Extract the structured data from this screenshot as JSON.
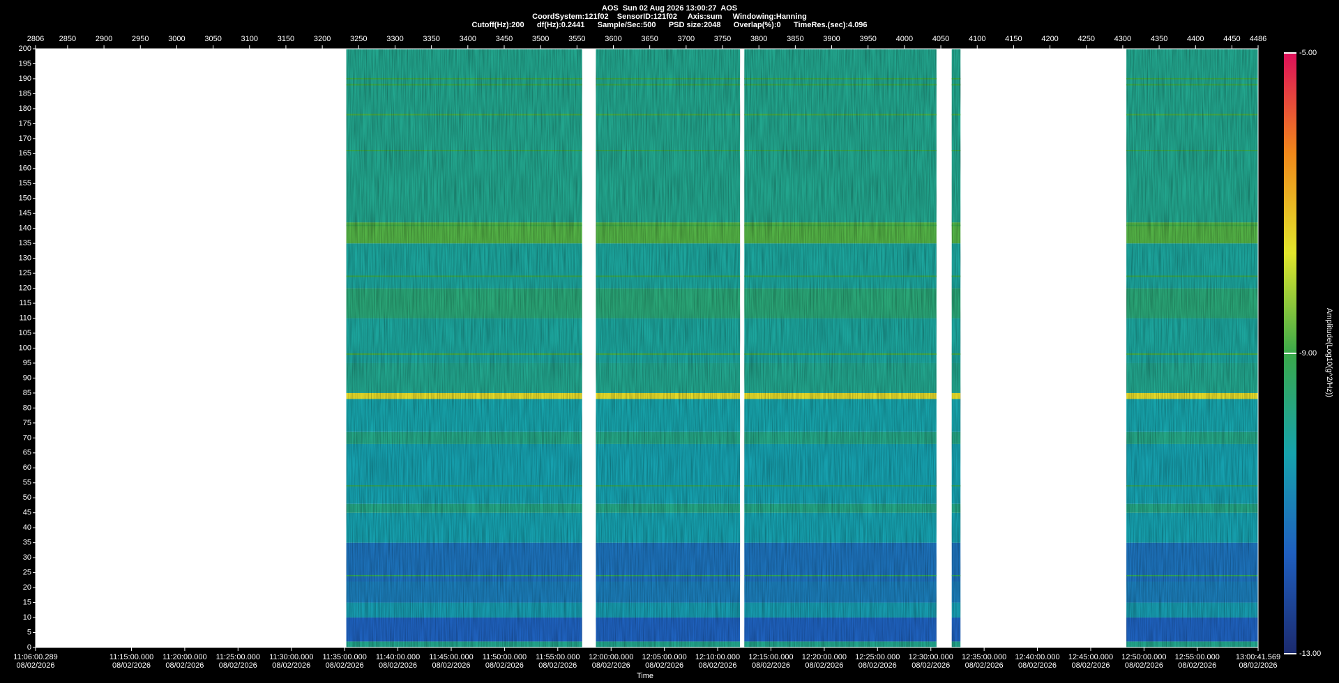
{
  "chart_data": {
    "type": "spectrogram",
    "title": "AOS  Sun 02 Aug 2026 13:00:27  AOS",
    "subtitle": [
      "CoordSystem:121f02    SensorID:121f02     Axis:sum     Windowing:Hanning",
      "Cutoff(Hz):200      df(Hz):0.2441      Sample/Sec:500      PSD size:2048      Overlap(%):0      TimeRes.(sec):4.096"
    ],
    "xlabel": "Time",
    "colorbar_label": "Amplitude(Log10(g^2/Hz))",
    "xlim": [
      2806,
      4486
    ],
    "xticks": [
      2806,
      2850,
      2900,
      2950,
      3000,
      3050,
      3100,
      3150,
      3200,
      3250,
      3300,
      3350,
      3400,
      3450,
      3500,
      3550,
      3600,
      3650,
      3700,
      3750,
      3800,
      3850,
      3900,
      3950,
      4000,
      4050,
      4100,
      4150,
      4200,
      4250,
      4300,
      4350,
      4400,
      4450,
      4486
    ],
    "x2ticks": [
      {
        "value": 2806,
        "label": "11:06:00.289"
      },
      {
        "value": 2937.8,
        "label": "11:15:00.000"
      },
      {
        "value": 3011.0,
        "label": "11:20:00.000"
      },
      {
        "value": 3084.2,
        "label": "11:25:00.000"
      },
      {
        "value": 3157.5,
        "label": "11:30:00.000"
      },
      {
        "value": 3230.7,
        "label": "11:35:00.000"
      },
      {
        "value": 3303.9,
        "label": "11:40:00.000"
      },
      {
        "value": 3377.2,
        "label": "11:45:00.000"
      },
      {
        "value": 3450.4,
        "label": "11:50:00.000"
      },
      {
        "value": 3523.6,
        "label": "11:55:00.000"
      },
      {
        "value": 3596.9,
        "label": "12:00:00.000"
      },
      {
        "value": 3670.1,
        "label": "12:05:00.000"
      },
      {
        "value": 3743.3,
        "label": "12:10:00.000"
      },
      {
        "value": 3816.6,
        "label": "12:15:00.000"
      },
      {
        "value": 3889.8,
        "label": "12:20:00.000"
      },
      {
        "value": 3963.0,
        "label": "12:25:00.000"
      },
      {
        "value": 4036.3,
        "label": "12:30:00.000"
      },
      {
        "value": 4109.5,
        "label": "12:35:00.000"
      },
      {
        "value": 4182.7,
        "label": "12:40:00.000"
      },
      {
        "value": 4256.0,
        "label": "12:45:00.000"
      },
      {
        "value": 4329.2,
        "label": "12:50:00.000"
      },
      {
        "value": 4402.4,
        "label": "12:55:00.000"
      },
      {
        "value": 4486,
        "label": "13:00:41.569"
      }
    ],
    "x2tick_dates": [
      "08/02/2026",
      "08/02/2026",
      "08/02/2026",
      "08/02/2026",
      "08/02/2026",
      "08/02/2026",
      "08/02/2026",
      "08/02/2026",
      "08/02/2026",
      "08/02/2026",
      "08/02/2026",
      "08/02/2026",
      "08/02/2026",
      "08/02/2026",
      "08/02/2026",
      "08/02/2026",
      "08/02/2026",
      "08/02/2026",
      "08/02/2026",
      "08/02/2026",
      "08/02/2026",
      "08/02/2026",
      "08/02/2026"
    ],
    "ylim": [
      0,
      200
    ],
    "yticks": [
      0,
      5,
      10,
      15,
      20,
      25,
      30,
      35,
      40,
      45,
      50,
      55,
      60,
      65,
      70,
      75,
      80,
      85,
      90,
      95,
      100,
      105,
      110,
      115,
      120,
      125,
      130,
      135,
      140,
      145,
      150,
      155,
      160,
      165,
      170,
      175,
      180,
      185,
      190,
      195,
      200
    ],
    "clim": [
      -13,
      -5
    ],
    "cticks": [
      {
        "value": -13,
        "label": "-13.00"
      },
      {
        "value": -9,
        "label": "-9.00"
      },
      {
        "value": -5,
        "label": "-5.00"
      }
    ],
    "colormap": [
      "#1b2a6e",
      "#1f5fc0",
      "#16a3ad",
      "#3aa94a",
      "#e2e62c",
      "#f0881a",
      "#de0f5a"
    ],
    "segments": [
      {
        "start": 3233,
        "end": 3557
      },
      {
        "start": 3576,
        "end": 3774
      },
      {
        "start": 3780,
        "end": 4044
      },
      {
        "start": 4065,
        "end": 4077
      },
      {
        "start": 4305,
        "end": 4486
      }
    ],
    "bands": [
      {
        "low": 0,
        "high": 2,
        "level": -9.9
      },
      {
        "low": 2,
        "high": 10,
        "level": -11.6
      },
      {
        "low": 10,
        "high": 15,
        "level": -10.5
      },
      {
        "low": 15,
        "high": 22,
        "level": -11.1
      },
      {
        "low": 22,
        "high": 35,
        "level": -11.3
      },
      {
        "low": 35,
        "high": 45,
        "level": -10.4
      },
      {
        "low": 45,
        "high": 48,
        "level": -9.8
      },
      {
        "low": 48,
        "high": 68,
        "level": -10.4
      },
      {
        "low": 68,
        "high": 72,
        "level": -9.8
      },
      {
        "low": 72,
        "high": 83,
        "level": -10.3
      },
      {
        "low": 83,
        "high": 85,
        "level": -7.5
      },
      {
        "low": 85,
        "high": 95,
        "level": -9.9
      },
      {
        "low": 95,
        "high": 110,
        "level": -10.1
      },
      {
        "low": 110,
        "high": 120,
        "level": -9.6
      },
      {
        "low": 120,
        "high": 135,
        "level": -10.1
      },
      {
        "low": 135,
        "high": 142,
        "level": -8.8
      },
      {
        "low": 142,
        "high": 200,
        "level": -9.9
      }
    ],
    "lines": [
      {
        "freq": 24,
        "level": -9.3
      },
      {
        "freq": 54,
        "level": -9.3
      },
      {
        "freq": 98,
        "level": -8.9
      },
      {
        "freq": 124,
        "level": -9.1
      },
      {
        "freq": 141,
        "level": -9.0
      },
      {
        "freq": 166,
        "level": -9.1
      },
      {
        "freq": 178,
        "level": -8.9
      },
      {
        "freq": 188,
        "level": -9.0
      },
      {
        "freq": 190,
        "level": -9.0
      }
    ]
  }
}
